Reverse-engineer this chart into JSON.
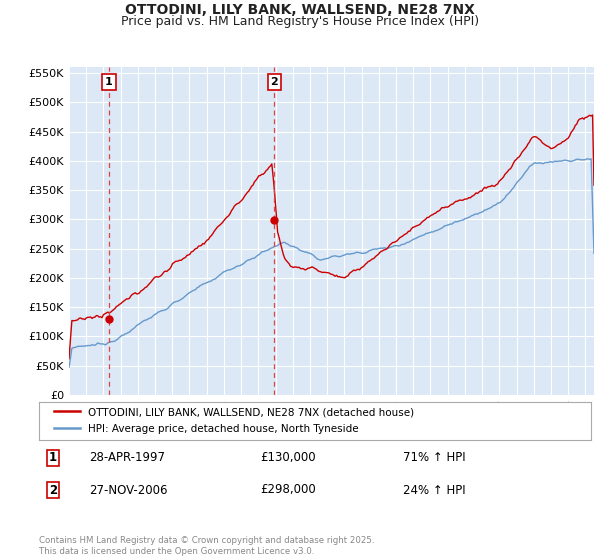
{
  "title": "OTTODINI, LILY BANK, WALLSEND, NE28 7NX",
  "subtitle": "Price paid vs. HM Land Registry's House Price Index (HPI)",
  "ylim": [
    0,
    560000
  ],
  "yticks": [
    0,
    50000,
    100000,
    150000,
    200000,
    250000,
    300000,
    350000,
    400000,
    450000,
    500000,
    550000
  ],
  "ytick_labels": [
    "£0",
    "£50K",
    "£100K",
    "£150K",
    "£200K",
    "£250K",
    "£300K",
    "£350K",
    "£400K",
    "£450K",
    "£500K",
    "£550K"
  ],
  "hpi_color": "#6699cc",
  "price_color": "#cc0000",
  "marker_color": "#cc0000",
  "vline_color": "#dd4444",
  "annotation_border_color": "#cc0000",
  "background_color": "#dce8f5",
  "grid_color": "#ffffff",
  "legend_label_price": "OTTODINI, LILY BANK, WALLSEND, NE28 7NX (detached house)",
  "legend_label_hpi": "HPI: Average price, detached house, North Tyneside",
  "sale1_date": "28-APR-1997",
  "sale1_price": 130000,
  "sale1_price_str": "£130,000",
  "sale1_pct": "71% ↑ HPI",
  "sale1_year": 1997.32,
  "sale2_date": "27-NOV-2006",
  "sale2_price": 298000,
  "sale2_price_str": "£298,000",
  "sale2_pct": "24% ↑ HPI",
  "sale2_year": 2006.92,
  "footnote": "Contains HM Land Registry data © Crown copyright and database right 2025.\nThis data is licensed under the Open Government Licence v3.0.",
  "title_fontsize": 10,
  "subtitle_fontsize": 9,
  "xlim_start": 1995,
  "xlim_end": 2025.5
}
